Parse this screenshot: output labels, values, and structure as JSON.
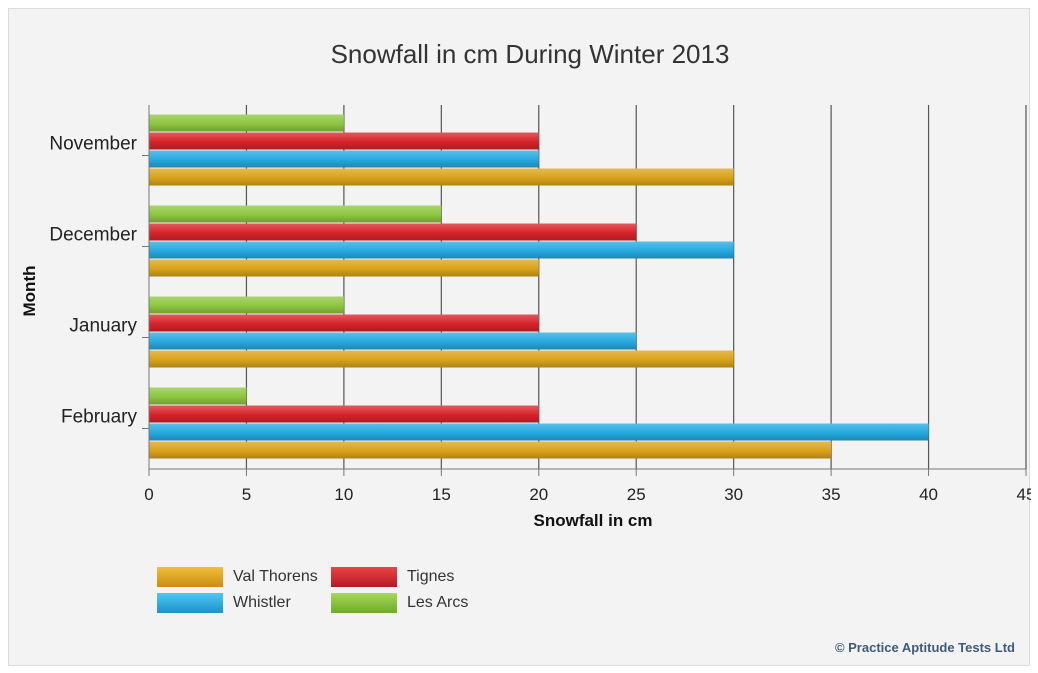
{
  "chart_data": {
    "type": "bar",
    "orientation": "horizontal",
    "title": "Snowfall in cm During Winter 2013",
    "xlabel": "Snowfall in cm",
    "ylabel": "Month",
    "categories": [
      "November",
      "December",
      "January",
      "February"
    ],
    "series": [
      {
        "name": "Les Arcs",
        "color": "#8dc63f",
        "values": [
          10,
          15,
          10,
          5
        ]
      },
      {
        "name": "Tignes",
        "color": "#d7232a",
        "values": [
          20,
          25,
          20,
          20
        ]
      },
      {
        "name": "Whistler",
        "color": "#25a9e0",
        "values": [
          20,
          30,
          25,
          40
        ]
      },
      {
        "name": "Val Thorens",
        "color": "#d9a219",
        "values": [
          30,
          20,
          30,
          35
        ]
      }
    ],
    "xlim": [
      0,
      45
    ],
    "xticks": [
      0,
      5,
      10,
      15,
      20,
      25,
      30,
      35,
      40,
      45
    ],
    "grid": "vertical",
    "legend_order": [
      "Val Thorens",
      "Tignes",
      "Whistler",
      "Les Arcs"
    ],
    "legend_position": "bottom-left"
  },
  "credit": "© Practice Aptitude Tests Ltd"
}
